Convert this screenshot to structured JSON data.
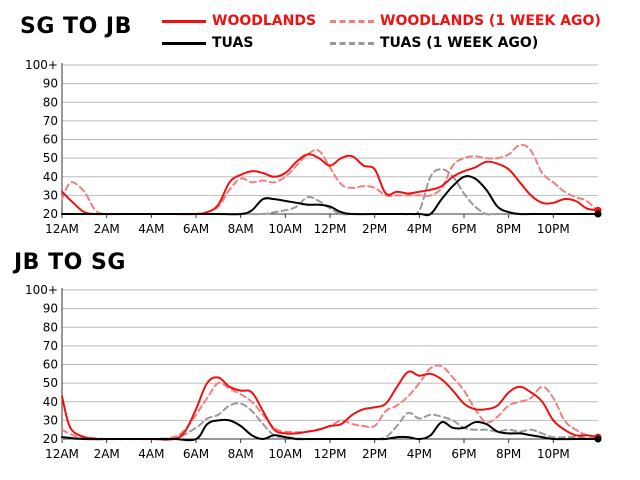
{
  "legend": [
    {
      "label": "WOODLANDS",
      "color": "#ee1111",
      "style": "solid"
    },
    {
      "label": "WOODLANDS (1 WEEK AGO)",
      "color": "#f08080",
      "style": "dashed"
    },
    {
      "label": "TUAS",
      "color": "#000000",
      "style": "solid"
    },
    {
      "label": "TUAS (1 WEEK AGO)",
      "color": "#999999",
      "style": "dashed"
    }
  ],
  "chart_data": [
    {
      "type": "line",
      "title": "SG TO JB",
      "xlabel": "",
      "ylabel": "",
      "x_ticks": [
        "12AM",
        "2AM",
        "4AM",
        "6AM",
        "8AM",
        "10AM",
        "12PM",
        "2PM",
        "4PM",
        "6PM",
        "8PM",
        "10PM"
      ],
      "y_ticks": [
        "20",
        "30",
        "40",
        "50",
        "60",
        "70",
        "80",
        "90",
        "100+"
      ],
      "xlim": [
        0,
        24
      ],
      "ylim": [
        20,
        100
      ],
      "grid": true,
      "legend_position": "top",
      "series": [
        {
          "name": "WOODLANDS",
          "color": "#ee1111",
          "dash": false,
          "x": [
            0,
            0.5,
            1,
            1.5,
            2,
            3,
            4,
            5,
            6,
            6.5,
            7,
            7.5,
            8,
            8.5,
            9,
            9.5,
            10,
            10.5,
            11,
            11.5,
            12,
            12.5,
            13,
            13.5,
            14,
            14.5,
            15,
            15.5,
            16,
            16.5,
            17,
            17.5,
            18,
            18.5,
            19,
            19.5,
            20,
            20.5,
            21,
            21.5,
            22,
            22.5,
            23,
            23.5,
            24
          ],
          "y": [
            32,
            26,
            21,
            20,
            20,
            20,
            20,
            20,
            20,
            21,
            25,
            37,
            41,
            43,
            42,
            40,
            42,
            48,
            52,
            50,
            46,
            50,
            51,
            46,
            44,
            31,
            32,
            31,
            32,
            33,
            35,
            40,
            43,
            45,
            48,
            47,
            44,
            37,
            30,
            26,
            26,
            28,
            27,
            23,
            22
          ]
        },
        {
          "name": "WOODLANDS (1 WEEK AGO)",
          "color": "#f08080",
          "dash": true,
          "x": [
            0,
            0.25,
            0.5,
            1,
            1.5,
            2,
            3,
            4,
            5,
            6,
            6.5,
            7,
            7.5,
            8,
            8.5,
            9,
            9.5,
            10,
            10.5,
            11,
            11.5,
            12,
            12.5,
            13,
            13.5,
            14,
            14.5,
            15,
            15.5,
            16,
            16.5,
            17,
            17.5,
            18,
            18.5,
            19,
            19.5,
            20,
            20.5,
            21,
            21.5,
            22,
            22.5,
            23,
            23.5,
            24
          ],
          "y": [
            28,
            35,
            37,
            32,
            22,
            20,
            20,
            20,
            20,
            20,
            21,
            24,
            33,
            39,
            37,
            38,
            37,
            40,
            46,
            52,
            54,
            45,
            36,
            34,
            35,
            34,
            30,
            30,
            30,
            30,
            30,
            34,
            46,
            50,
            51,
            50,
            50,
            52,
            57,
            54,
            42,
            37,
            32,
            29,
            27,
            21
          ]
        },
        {
          "name": "TUAS",
          "color": "#000000",
          "dash": false,
          "x": [
            0,
            2,
            4,
            6,
            7,
            8,
            8.5,
            9,
            9.5,
            10,
            10.5,
            11,
            11.5,
            12,
            12.5,
            13,
            14,
            15,
            16,
            16.5,
            17,
            17.5,
            18,
            18.5,
            19,
            19.5,
            20,
            20.5,
            21,
            22,
            23,
            24
          ],
          "y": [
            20,
            20,
            20,
            20,
            20,
            20,
            22,
            28,
            28,
            27,
            26,
            25,
            25,
            24,
            21,
            20,
            20,
            20,
            20,
            20,
            28,
            35,
            40,
            39,
            33,
            24,
            21,
            20,
            20,
            20,
            20,
            20
          ]
        },
        {
          "name": "TUAS (1 WEEK AGO)",
          "color": "#999999",
          "dash": true,
          "x": [
            0,
            2,
            4,
            6,
            8,
            9,
            9.5,
            10,
            10.5,
            11,
            11.5,
            12,
            12.5,
            13,
            14,
            15,
            15.5,
            16,
            16.5,
            17,
            17.5,
            18,
            18.5,
            19,
            19.5,
            20,
            21,
            22,
            23,
            24
          ],
          "y": [
            20,
            20,
            20,
            20,
            20,
            20,
            21,
            22,
            24,
            29,
            27,
            23,
            20,
            20,
            20,
            20,
            20,
            22,
            40,
            44,
            40,
            31,
            24,
            20,
            20,
            20,
            20,
            20,
            20,
            20
          ]
        }
      ]
    },
    {
      "type": "line",
      "title": "JB TO SG",
      "xlabel": "",
      "ylabel": "",
      "x_ticks": [
        "12AM",
        "2AM",
        "4AM",
        "6AM",
        "8AM",
        "10AM",
        "12PM",
        "2PM",
        "4PM",
        "6PM",
        "8PM",
        "10PM"
      ],
      "y_ticks": [
        "20",
        "30",
        "40",
        "50",
        "60",
        "70",
        "80",
        "90",
        "100+"
      ],
      "xlim": [
        0,
        24
      ],
      "ylim": [
        20,
        100
      ],
      "grid": true,
      "legend_position": "top",
      "series": [
        {
          "name": "WOODLANDS",
          "color": "#ee1111",
          "dash": false,
          "x": [
            0,
            0.25,
            0.5,
            1,
            1.5,
            2,
            3,
            4,
            5,
            5.5,
            6,
            6.5,
            7,
            7.5,
            8,
            8.5,
            9,
            9.5,
            10,
            10.5,
            11,
            11.5,
            12,
            12.5,
            13,
            13.5,
            14,
            14.5,
            15,
            15.5,
            16,
            16.5,
            17,
            17.5,
            18,
            18.5,
            19,
            19.5,
            20,
            20.5,
            21,
            21.5,
            22,
            22.5,
            23,
            23.5,
            24
          ],
          "y": [
            43,
            30,
            24,
            21,
            20,
            20,
            20,
            20,
            20,
            24,
            36,
            50,
            53,
            48,
            46,
            45,
            35,
            25,
            23,
            23,
            24,
            25,
            27,
            28,
            33,
            36,
            37,
            39,
            48,
            56,
            54,
            55,
            52,
            46,
            39,
            36,
            36,
            38,
            45,
            48,
            45,
            40,
            30,
            25,
            22,
            22,
            21
          ]
        },
        {
          "name": "WOODLANDS (1 WEEK AGO)",
          "color": "#f08080",
          "dash": true,
          "x": [
            0,
            0.5,
            1,
            2,
            3,
            4,
            5,
            5.5,
            6,
            6.5,
            7,
            7.5,
            8,
            8.5,
            9,
            9.5,
            10,
            11,
            12,
            12.5,
            13,
            13.5,
            14,
            14.5,
            15,
            15.5,
            16,
            16.5,
            17,
            17.5,
            18,
            18.5,
            19,
            19.5,
            20,
            20.5,
            21,
            21.5,
            22,
            22.5,
            23,
            23.5,
            24
          ],
          "y": [
            25,
            22,
            21,
            20,
            20,
            20,
            21,
            25,
            33,
            42,
            50,
            47,
            44,
            40,
            33,
            26,
            24,
            24,
            27,
            30,
            28,
            27,
            27,
            35,
            38,
            43,
            50,
            58,
            59,
            53,
            46,
            36,
            29,
            32,
            38,
            40,
            42,
            48,
            42,
            30,
            25,
            22,
            21
          ]
        },
        {
          "name": "TUAS",
          "color": "#000000",
          "dash": false,
          "x": [
            0,
            1,
            2,
            3,
            4,
            5,
            6,
            6.5,
            7,
            7.5,
            8,
            8.5,
            9,
            9.5,
            10,
            10.5,
            11,
            12,
            13,
            14,
            14.5,
            15,
            15.5,
            16,
            16.5,
            17,
            17.5,
            18,
            18.5,
            19,
            19.5,
            20,
            20.5,
            21,
            21.5,
            22,
            23,
            24
          ],
          "y": [
            21,
            20,
            20,
            20,
            20,
            20,
            20,
            28,
            30,
            30,
            27,
            22,
            20,
            22,
            21,
            20,
            20,
            20,
            20,
            20,
            20,
            21,
            21,
            20,
            22,
            29,
            26,
            26,
            29,
            28,
            24,
            23,
            23,
            22,
            21,
            20,
            20,
            20
          ]
        },
        {
          "name": "TUAS (1 WEEK AGO)",
          "color": "#999999",
          "dash": true,
          "x": [
            0,
            1,
            2,
            3,
            4,
            5,
            6,
            6.5,
            7,
            7.5,
            8,
            8.5,
            9,
            9.5,
            10,
            11,
            12,
            13,
            14,
            14.5,
            15,
            15.5,
            16,
            16.5,
            17,
            17.5,
            18,
            18.5,
            19,
            19.5,
            20,
            20.5,
            21,
            21.5,
            22,
            23,
            24
          ],
          "y": [
            20,
            20,
            20,
            20,
            20,
            20,
            26,
            31,
            33,
            38,
            39,
            35,
            28,
            22,
            21,
            20,
            20,
            20,
            20,
            21,
            27,
            34,
            31,
            33,
            32,
            30,
            26,
            25,
            25,
            24,
            25,
            24,
            25,
            23,
            21,
            21,
            20
          ]
        }
      ]
    }
  ]
}
